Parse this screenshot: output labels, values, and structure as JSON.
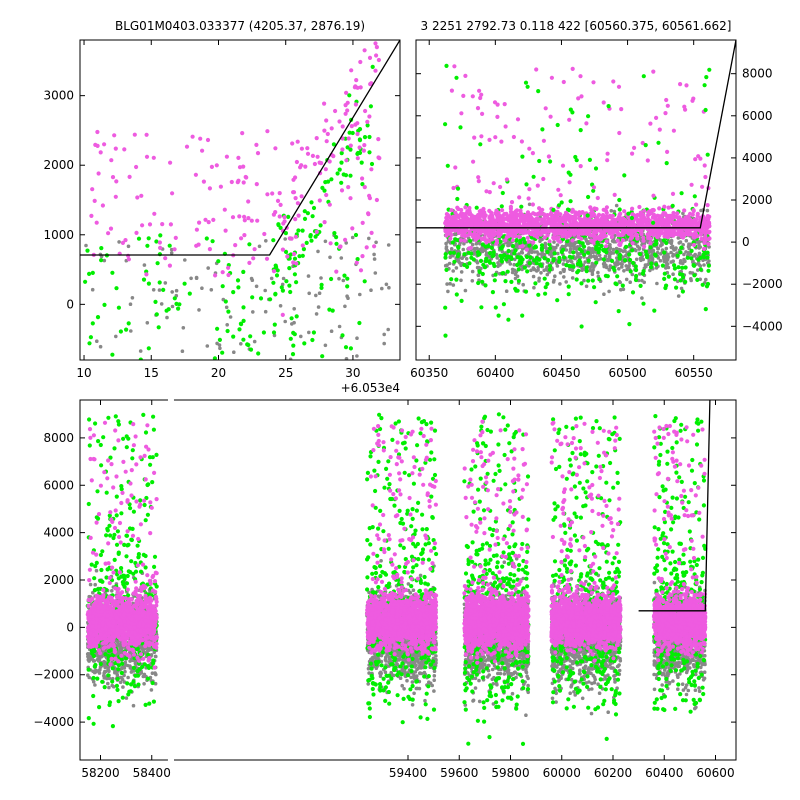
{
  "figure": {
    "title_left": "BLG01M0403.033377 (4205.37, 2876.19)",
    "title_right": "3 2251 2792.73 0.118 422 [60560.375, 60561.662]"
  },
  "colors": {
    "magenta": "#ee5be0",
    "green": "#00ee00",
    "gray": "#888888",
    "model_line": "#000000",
    "frame": "#000000"
  },
  "chart_data": [
    {
      "name": "zoom-panel",
      "type": "scatter",
      "xlim": [
        9.7,
        33.5
      ],
      "ylim": [
        -800,
        3800
      ],
      "x_offset_label": "+6.053e4",
      "xticks": [
        10,
        15,
        20,
        25,
        30
      ],
      "yticks": [
        0,
        1000,
        2000,
        3000
      ],
      "ytick_side": "left",
      "model_line": [
        [
          9.7,
          710
        ],
        [
          23.8,
          710
        ],
        [
          33.5,
          3800
        ]
      ],
      "clusters": [
        {
          "series": "gray",
          "x": [
            10,
            33
          ],
          "y": [
            -800,
            1000
          ],
          "n": 120,
          "spread": "uniform"
        },
        {
          "series": "green",
          "x": [
            10,
            31
          ],
          "y": [
            -800,
            1000
          ],
          "n": 120,
          "spread": "uniform"
        },
        {
          "series": "green-rise",
          "x": [
            24,
            31.5
          ],
          "y": [
            300,
            2600
          ],
          "n": 90,
          "spread": "trend"
        },
        {
          "series": "magenta",
          "x": [
            10.5,
            32
          ],
          "y": [
            400,
            2500
          ],
          "n": 170,
          "spread": "uniform"
        },
        {
          "series": "magenta-rise",
          "x": [
            24,
            32
          ],
          "y": [
            1000,
            3600
          ],
          "n": 70,
          "spread": "trend"
        }
      ]
    },
    {
      "name": "season-panel",
      "type": "scatter",
      "xlim": [
        60340,
        60582
      ],
      "ylim": [
        -5600,
        9600
      ],
      "xticks": [
        60350,
        60400,
        60450,
        60500,
        60550
      ],
      "yticks": [
        -4000,
        -2000,
        0,
        2000,
        4000,
        6000,
        8000
      ],
      "ytick_side": "right",
      "model_line": [
        [
          60340,
          680
        ],
        [
          60555,
          680
        ],
        [
          60582,
          9600
        ]
      ],
      "clusters": [
        {
          "series": "gray",
          "x": [
            60362,
            60562
          ],
          "y": [
            -1900,
            1100
          ],
          "n": 1100,
          "spread": "gaussian"
        },
        {
          "series": "green",
          "x": [
            60362,
            60562
          ],
          "y": [
            -2500,
            1900
          ],
          "n": 420,
          "spread": "gaussian"
        },
        {
          "series": "magenta",
          "x": [
            60362,
            60562
          ],
          "y": [
            100,
            1500
          ],
          "n": 1500,
          "spread": "gaussian"
        },
        {
          "series": "magenta-outlier",
          "x": [
            60362,
            60562
          ],
          "y": [
            1500,
            8500
          ],
          "n": 110,
          "spread": "uniform"
        },
        {
          "series": "green-outlier",
          "x": [
            60362,
            60562
          ],
          "y": [
            -4500,
            8500
          ],
          "n": 70,
          "spread": "uniform"
        }
      ]
    },
    {
      "name": "full-panel",
      "type": "scatter",
      "xlim": [
        58120,
        60680
      ],
      "ylim": [
        -5600,
        9600
      ],
      "break_at": 58475,
      "xticks": [
        58200,
        58400,
        59400,
        59600,
        59800,
        60000,
        60200,
        60400,
        60600
      ],
      "yticks": [
        -4000,
        -2000,
        0,
        2000,
        4000,
        6000,
        8000
      ],
      "ytick_side": "left",
      "model_line": [
        [
          60300,
          700
        ],
        [
          60560,
          700
        ],
        [
          60578,
          9600
        ]
      ],
      "seasons": [
        {
          "x": [
            58150,
            58420
          ],
          "n": 1100
        },
        {
          "x": [
            59240,
            59510
          ],
          "n": 1300
        },
        {
          "x": [
            59620,
            59870
          ],
          "n": 1300
        },
        {
          "x": [
            59960,
            60230
          ],
          "n": 1300
        },
        {
          "x": [
            60360,
            60560
          ],
          "n": 1000
        }
      ]
    }
  ]
}
